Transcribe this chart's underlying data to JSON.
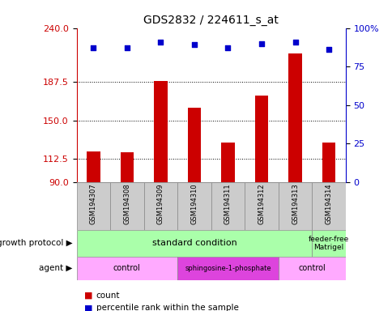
{
  "title": "GDS2832 / 224611_s_at",
  "samples": [
    "GSM194307",
    "GSM194308",
    "GSM194309",
    "GSM194310",
    "GSM194311",
    "GSM194312",
    "GSM194313",
    "GSM194314"
  ],
  "counts": [
    120,
    119,
    188,
    162,
    128,
    174,
    215,
    128
  ],
  "percentiles": [
    87,
    87,
    91,
    89,
    87,
    90,
    91,
    86
  ],
  "ylim_left": [
    90,
    240
  ],
  "ylim_right": [
    0,
    100
  ],
  "yticks_left": [
    90,
    112.5,
    150,
    187.5,
    240
  ],
  "yticks_right": [
    0,
    25,
    50,
    75,
    100
  ],
  "bar_color": "#cc0000",
  "dot_color": "#0000cc",
  "growth_protocol_label": "growth protocol",
  "agent_label": "agent",
  "standard_condition_label": "standard condition",
  "standard_condition_color": "#aaffaa",
  "feeder_free_label": "feeder-free\nMatrigel",
  "feeder_free_color": "#aaffaa",
  "agent_groups": [
    {
      "start": 0,
      "end": 2,
      "label": "control",
      "color": "#ffaaff"
    },
    {
      "start": 3,
      "end": 5,
      "label": "sphingosine-1-phosphate",
      "color": "#dd44dd"
    },
    {
      "start": 6,
      "end": 7,
      "label": "control",
      "color": "#ffaaff"
    }
  ],
  "legend_count_label": "count",
  "legend_pct_label": "percentile rank within the sample",
  "background_color": "#ffffff",
  "sample_box_color": "#cccccc",
  "sample_box_edge": "#888888"
}
